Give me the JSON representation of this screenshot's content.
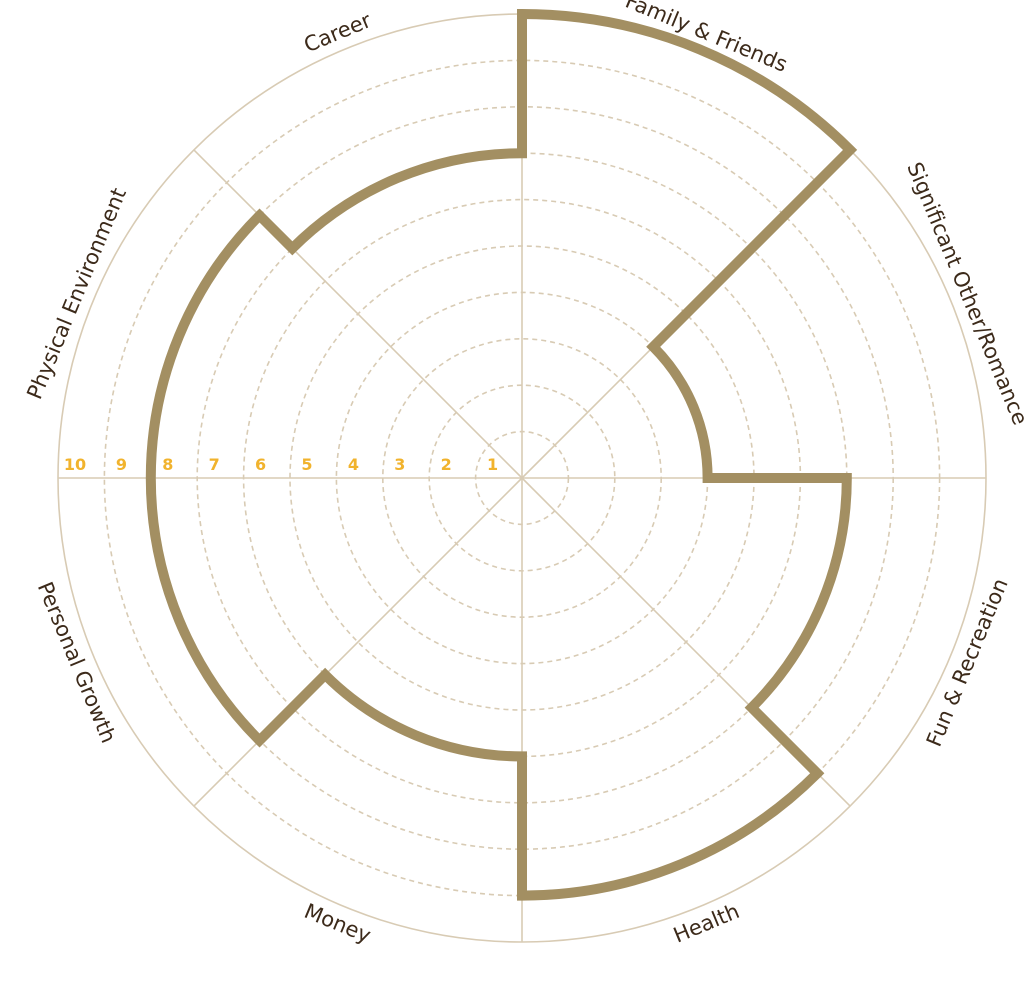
{
  "chart_data": {
    "type": "radial-bar",
    "title": "",
    "scale": {
      "min": 0,
      "max": 10,
      "ticks": [
        1,
        2,
        3,
        4,
        5,
        6,
        7,
        8,
        9,
        10
      ]
    },
    "tick_labels": [
      "1",
      "2",
      "3",
      "4",
      "5",
      "6",
      "7",
      "8",
      "9",
      "10"
    ],
    "categories": [
      "Family & Friends",
      "Significant Other/Romance",
      "Fun & Recreation",
      "Health",
      "Money",
      "Personal Growth",
      "Physical Environment",
      "Career"
    ],
    "values": [
      10,
      4,
      7,
      9,
      6,
      8,
      8,
      7
    ],
    "grid": true,
    "colors": {
      "outline": "#a38f62",
      "spokes": "#d8cbb4",
      "rings": "#d8cbb4",
      "outer_circle": "#d8cbb4",
      "tick_labels": "#f1b32d",
      "category_labels": "#3c2a1a"
    }
  }
}
